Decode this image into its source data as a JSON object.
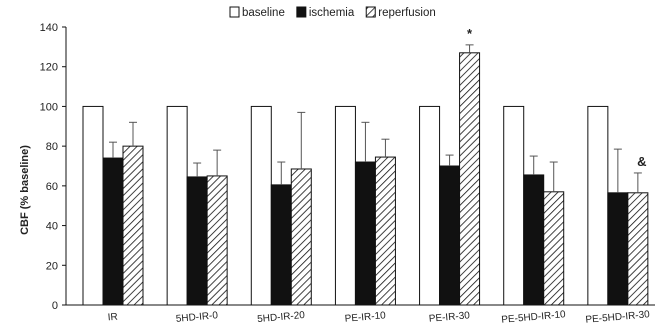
{
  "chart_data": {
    "type": "bar",
    "ylabel": "CBF (% baseline)",
    "ylim": [
      0,
      140
    ],
    "yticks": [
      0,
      20,
      40,
      60,
      80,
      100,
      120,
      140
    ],
    "grid": false,
    "legend_position": "top",
    "categories": [
      "IR",
      "5HD-IR-0",
      "5HD-IR-20",
      "PE-IR-10",
      "PE-IR-30",
      "PE-5HD-IR-10",
      "PE-5HD-IR-30"
    ],
    "series": [
      {
        "name": "baseline",
        "fill": "#ffffff",
        "pattern": "none",
        "values": [
          100,
          100,
          100,
          100,
          100,
          100,
          100
        ],
        "errors": [
          0,
          0,
          0,
          0,
          0,
          0,
          0
        ]
      },
      {
        "name": "ischemia",
        "fill": "#111111",
        "pattern": "solid",
        "values": [
          74,
          64.5,
          60.5,
          72,
          70,
          65.5,
          56.5
        ],
        "errors": [
          8,
          7,
          11.5,
          20,
          5.5,
          9.5,
          22
        ]
      },
      {
        "name": "reperfusion",
        "fill": "#ffffff",
        "pattern": "hatch",
        "values": [
          80,
          65,
          68.5,
          74.5,
          127,
          57,
          56.5
        ],
        "errors": [
          12,
          13,
          28.5,
          9,
          4,
          15,
          10
        ]
      }
    ],
    "annotations": [
      {
        "category_index": 4,
        "series_index": 2,
        "text": "*"
      },
      {
        "category_index": 6,
        "series_index": 2,
        "text": "&"
      }
    ]
  }
}
